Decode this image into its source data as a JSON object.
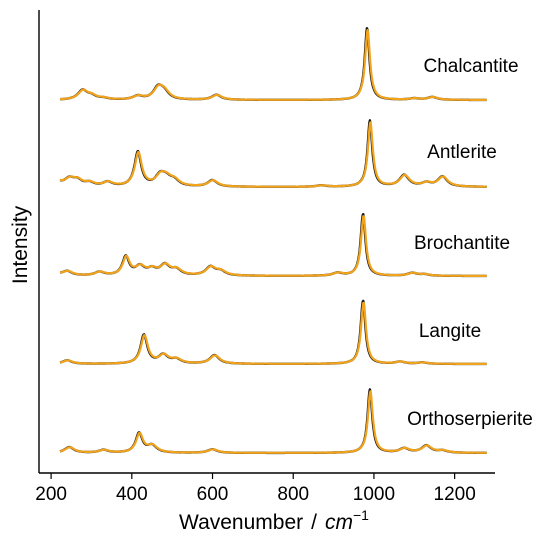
{
  "chart_data": {
    "type": "line",
    "title": "",
    "xlabel": "Wavenumber",
    "xlabel_separator": "/",
    "xlabel_unit": "cm",
    "xlabel_unit_exponent": "−1",
    "ylabel": "Intensity",
    "xlim": [
      170,
      1300
    ],
    "x_ticks": [
      200,
      400,
      600,
      800,
      1000,
      1200
    ],
    "y_ticks_shown": false,
    "grid": false,
    "colors": {
      "measured": "#1a1a1a",
      "fit": "#f2a31c"
    },
    "stacked_offset": true,
    "series": [
      {
        "name": "Chalcantite",
        "baseline": 0,
        "peaks": [
          {
            "x": 278,
            "y": 0.13
          },
          {
            "x": 300,
            "y": 0.05
          },
          {
            "x": 330,
            "y": 0.02
          },
          {
            "x": 415,
            "y": 0.05
          },
          {
            "x": 465,
            "y": 0.16
          },
          {
            "x": 480,
            "y": 0.1
          },
          {
            "x": 610,
            "y": 0.07
          },
          {
            "x": 983,
            "y": 1.0
          },
          {
            "x": 1100,
            "y": 0.02
          },
          {
            "x": 1145,
            "y": 0.04
          }
        ]
      },
      {
        "name": "Antlerite",
        "baseline": 0,
        "peaks": [
          {
            "x": 215,
            "y": 0.07
          },
          {
            "x": 245,
            "y": 0.1
          },
          {
            "x": 265,
            "y": 0.08
          },
          {
            "x": 295,
            "y": 0.05
          },
          {
            "x": 340,
            "y": 0.06
          },
          {
            "x": 415,
            "y": 0.48
          },
          {
            "x": 470,
            "y": 0.14
          },
          {
            "x": 485,
            "y": 0.1
          },
          {
            "x": 505,
            "y": 0.08
          },
          {
            "x": 600,
            "y": 0.09
          },
          {
            "x": 870,
            "y": 0.02
          },
          {
            "x": 990,
            "y": 0.92
          },
          {
            "x": 1075,
            "y": 0.16
          },
          {
            "x": 1130,
            "y": 0.05
          },
          {
            "x": 1170,
            "y": 0.14
          }
        ]
      },
      {
        "name": "Brochantite",
        "baseline": 0,
        "peaks": [
          {
            "x": 200,
            "y": 0.08
          },
          {
            "x": 240,
            "y": 0.06
          },
          {
            "x": 320,
            "y": 0.05
          },
          {
            "x": 385,
            "y": 0.26
          },
          {
            "x": 420,
            "y": 0.12
          },
          {
            "x": 450,
            "y": 0.08
          },
          {
            "x": 482,
            "y": 0.14
          },
          {
            "x": 510,
            "y": 0.08
          },
          {
            "x": 595,
            "y": 0.12
          },
          {
            "x": 620,
            "y": 0.06
          },
          {
            "x": 910,
            "y": 0.04
          },
          {
            "x": 973,
            "y": 0.86
          },
          {
            "x": 1095,
            "y": 0.04
          },
          {
            "x": 1125,
            "y": 0.02
          }
        ]
      },
      {
        "name": "Langite",
        "baseline": 0,
        "peaks": [
          {
            "x": 240,
            "y": 0.05
          },
          {
            "x": 430,
            "y": 0.4
          },
          {
            "x": 478,
            "y": 0.12
          },
          {
            "x": 510,
            "y": 0.06
          },
          {
            "x": 605,
            "y": 0.12
          },
          {
            "x": 973,
            "y": 0.88
          },
          {
            "x": 1065,
            "y": 0.03
          },
          {
            "x": 1120,
            "y": 0.02
          }
        ]
      },
      {
        "name": "Orthoserpierite",
        "baseline": 0,
        "peaks": [
          {
            "x": 245,
            "y": 0.08
          },
          {
            "x": 330,
            "y": 0.04
          },
          {
            "x": 418,
            "y": 0.27
          },
          {
            "x": 450,
            "y": 0.1
          },
          {
            "x": 600,
            "y": 0.05
          },
          {
            "x": 990,
            "y": 0.88
          },
          {
            "x": 1075,
            "y": 0.06
          },
          {
            "x": 1130,
            "y": 0.1
          },
          {
            "x": 1170,
            "y": 0.03
          }
        ]
      }
    ]
  }
}
